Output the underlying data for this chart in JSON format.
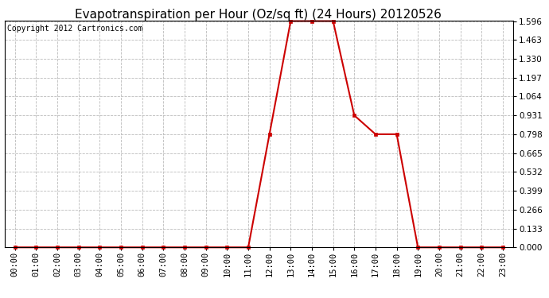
{
  "title": "Evapotranspiration per Hour (Oz/sq ft) (24 Hours) 20120526",
  "copyright": "Copyright 2012 Cartronics.com",
  "x_labels": [
    "00:00",
    "01:00",
    "02:00",
    "03:00",
    "04:00",
    "05:00",
    "06:00",
    "07:00",
    "08:00",
    "09:00",
    "10:00",
    "11:00",
    "12:00",
    "13:00",
    "14:00",
    "15:00",
    "16:00",
    "17:00",
    "18:00",
    "19:00",
    "20:00",
    "21:00",
    "22:00",
    "23:00"
  ],
  "x_values": [
    0,
    1,
    2,
    3,
    4,
    5,
    6,
    7,
    8,
    9,
    10,
    11,
    12,
    13,
    14,
    15,
    16,
    17,
    18,
    19,
    20,
    21,
    22,
    23
  ],
  "y_values": [
    0.0,
    0.0,
    0.0,
    0.0,
    0.0,
    0.0,
    0.0,
    0.0,
    0.0,
    0.0,
    0.0,
    0.0,
    0.798,
    1.596,
    1.596,
    1.596,
    0.931,
    0.798,
    0.798,
    0.0,
    0.0,
    0.0,
    0.0,
    0.0
  ],
  "y_ticks": [
    0.0,
    0.133,
    0.266,
    0.399,
    0.532,
    0.665,
    0.798,
    0.931,
    1.064,
    1.197,
    1.33,
    1.463,
    1.596
  ],
  "line_color": "#cc0000",
  "marker_size": 3.5,
  "bg_color": "#ffffff",
  "plot_bg_color": "#ffffff",
  "grid_color": "#bbbbbb",
  "title_fontsize": 11,
  "copyright_fontsize": 7,
  "tick_fontsize": 7.5,
  "y_min": 0.0,
  "y_max": 1.596
}
